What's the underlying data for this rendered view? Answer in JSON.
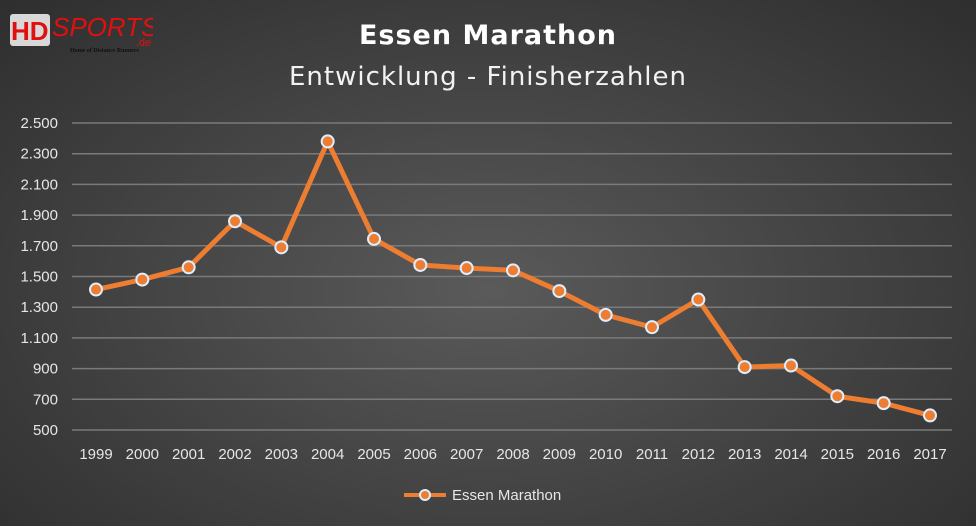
{
  "logo": {
    "text": "HDsports.de",
    "tagline": "Home of Distance Runners"
  },
  "chart_data": {
    "type": "line",
    "title": "Essen Marathon",
    "subtitle": "Entwicklung - Finisherzahlen",
    "categories": [
      "1999",
      "2000",
      "2001",
      "2002",
      "2003",
      "2004",
      "2005",
      "2006",
      "2007",
      "2008",
      "2009",
      "2010",
      "2011",
      "2012",
      "2013",
      "2014",
      "2015",
      "2016",
      "2017"
    ],
    "series": [
      {
        "name": "Essen Marathon",
        "values": [
          1415,
          1480,
          1560,
          1860,
          1690,
          2380,
          1745,
          1575,
          1555,
          1540,
          1405,
          1250,
          1170,
          1350,
          910,
          920,
          720,
          675,
          595
        ],
        "color": "#ed7d31"
      }
    ],
    "yticks": [
      "500",
      "700",
      "900",
      "1.100",
      "1.300",
      "1.500",
      "1.700",
      "1.900",
      "2.100",
      "2.300",
      "2.500"
    ],
    "ylim": [
      500,
      2500
    ],
    "grid": true,
    "legend": "bottom"
  }
}
